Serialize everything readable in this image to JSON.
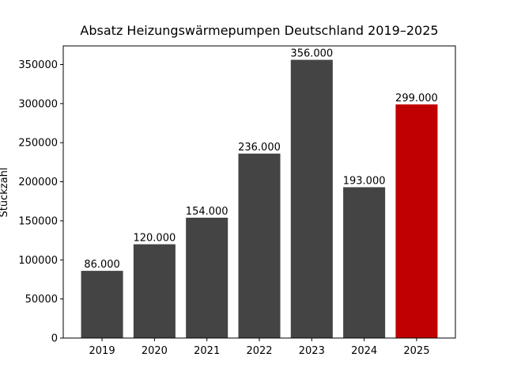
{
  "chart_data": {
    "type": "bar",
    "title": "Absatz Heizungswärmepumpen Deutschland 2019–2025",
    "y_label": "Stückzahl",
    "categories": [
      "2019",
      "2020",
      "2021",
      "2022",
      "2023",
      "2024",
      "2025"
    ],
    "values": [
      86000,
      120000,
      154000,
      236000,
      356000,
      193000,
      299000
    ],
    "value_labels": [
      "86.000",
      "120.000",
      "154.000",
      "236.000",
      "356.000",
      "193.000",
      "299.000"
    ],
    "colors": [
      "#444444",
      "#444444",
      "#444444",
      "#444444",
      "#444444",
      "#444444",
      "#c00000"
    ],
    "ylim": [
      0,
      373800
    ],
    "yticks": [
      0,
      50000,
      100000,
      150000,
      200000,
      250000,
      300000,
      350000
    ]
  }
}
